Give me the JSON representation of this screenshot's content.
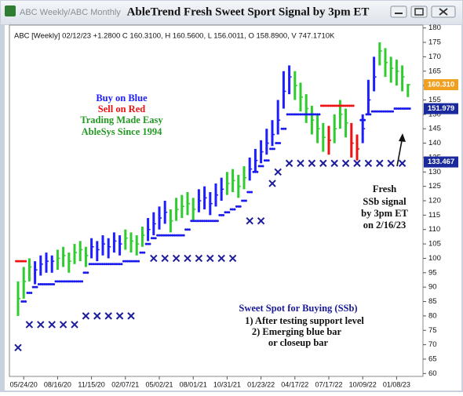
{
  "window": {
    "tab_title": "ABC Weekly/ABC Monthly"
  },
  "chart_data": {
    "type": "ohlc",
    "title": "AbleTrend Fresh Sweet Sport Signal by 3pm ET",
    "subtitle": "ABC [Weekly] 02/12/23 +1.2800 C 160.3100, H 160.5600, L 156.0011, O 158.8900, V 747.1710K",
    "categories": [
      null,
      "05/24/20",
      null,
      null,
      null,
      null,
      null,
      "08/16/20",
      null,
      null,
      null,
      null,
      null,
      "11/15/20",
      null,
      null,
      null,
      null,
      null,
      "02/07/21",
      null,
      null,
      null,
      null,
      null,
      "05/02/21",
      null,
      null,
      null,
      null,
      null,
      "08/01/21",
      null,
      null,
      null,
      null,
      null,
      "10/31/21",
      null,
      null,
      null,
      null,
      null,
      "01/23/22",
      null,
      null,
      null,
      null,
      null,
      "04/17/22",
      null,
      null,
      null,
      null,
      null,
      "07/17/22",
      null,
      null,
      null,
      null,
      null,
      "10/09/22",
      null,
      null,
      null,
      null,
      null,
      "01/08/23",
      null,
      null
    ],
    "high": [
      92,
      97,
      100,
      99,
      101,
      102,
      101,
      103,
      104,
      102,
      105,
      106,
      104,
      107,
      106,
      108,
      107,
      109,
      108,
      110,
      109,
      108,
      111,
      114,
      116,
      118,
      120,
      117,
      121,
      122,
      123,
      121,
      124,
      125,
      123,
      126,
      128,
      130,
      131,
      129,
      132,
      135,
      138,
      141,
      145,
      148,
      155,
      165,
      167,
      165,
      161,
      157,
      153,
      150,
      147,
      146,
      150,
      155,
      152,
      147,
      143,
      150,
      162,
      170,
      175,
      173,
      170,
      169,
      167,
      160.56
    ],
    "low": [
      80,
      86,
      92,
      91,
      94,
      95,
      95,
      96,
      97,
      95,
      98,
      99,
      97,
      100,
      99,
      101,
      100,
      102,
      101,
      103,
      102,
      101,
      104,
      106,
      108,
      110,
      112,
      109,
      113,
      114,
      115,
      113,
      116,
      117,
      115,
      118,
      120,
      122,
      123,
      121,
      124,
      127,
      130,
      133,
      136,
      139,
      143,
      152,
      157,
      155,
      151,
      147,
      143,
      140,
      137,
      136,
      140,
      145,
      142,
      135,
      134,
      140,
      150,
      158,
      167,
      163,
      161,
      160,
      158,
      156.0011
    ],
    "close": [
      86,
      92,
      97,
      96,
      98,
      99,
      99,
      100,
      101,
      99,
      102,
      103,
      101,
      104,
      103,
      105,
      104,
      106,
      105,
      107,
      106,
      105,
      108,
      110,
      112,
      114,
      116,
      113,
      117,
      118,
      119,
      117,
      120,
      121,
      119,
      122,
      124,
      126,
      127,
      125,
      128,
      131,
      134,
      137,
      140,
      143,
      148,
      158,
      163,
      160,
      156,
      152,
      148,
      145,
      142,
      141,
      145,
      150,
      147,
      140,
      138,
      145,
      155,
      163,
      172,
      168,
      166,
      165,
      163,
      160.31
    ],
    "bar_colors": [
      "#2ecc2e",
      "#2ecc2e",
      "#2ecc2e",
      "#1e1eff",
      "#1e1eff",
      "#1e1eff",
      "#1e1eff",
      "#2ecc2e",
      "#2ecc2e",
      "#2ecc2e",
      "#2ecc2e",
      "#2ecc2e",
      "#2ecc2e",
      "#1e1eff",
      "#1e1eff",
      "#1e1eff",
      "#1e1eff",
      "#1e1eff",
      "#1e1eff",
      "#2ecc2e",
      "#2ecc2e",
      "#2ecc2e",
      "#2ecc2e",
      "#1e1eff",
      "#1e1eff",
      "#1e1eff",
      "#1e1eff",
      "#2ecc2e",
      "#2ecc2e",
      "#2ecc2e",
      "#2ecc2e",
      "#2ecc2e",
      "#1e1eff",
      "#1e1eff",
      "#1e1eff",
      "#1e1eff",
      "#1e1eff",
      "#2ecc2e",
      "#2ecc2e",
      "#2ecc2e",
      "#2ecc2e",
      "#1e1eff",
      "#1e1eff",
      "#1e1eff",
      "#1e1eff",
      "#1e1eff",
      "#1e1eff",
      "#1e1eff",
      "#1e1eff",
      "#2ecc2e",
      "#2ecc2e",
      "#2ecc2e",
      "#2ecc2e",
      "#2ecc2e",
      "#2ecc2e",
      "#ee1111",
      "#2ecc2e",
      "#2ecc2e",
      "#2ecc2e",
      "#ee1111",
      "#ee1111",
      "#1e1eff",
      "#1e1eff",
      "#1e1eff",
      "#2ecc2e",
      "#2ecc2e",
      "#2ecc2e",
      "#2ecc2e",
      "#2ecc2e",
      "#2ecc2e"
    ],
    "support": [
      null,
      85,
      88,
      90,
      91,
      91,
      91,
      92,
      92,
      92,
      92,
      92,
      95,
      98,
      98,
      98,
      98,
      98,
      98,
      99,
      99,
      99,
      102,
      105,
      107,
      108,
      108,
      108,
      108,
      108,
      110,
      113,
      113,
      113,
      113,
      113,
      115,
      116,
      117,
      118,
      120,
      123,
      130,
      132,
      134,
      138,
      140,
      145,
      150,
      150,
      150,
      150,
      150,
      150,
      null,
      null,
      null,
      null,
      null,
      null,
      null,
      148,
      150,
      151,
      151,
      151,
      151,
      152,
      152,
      152
    ],
    "support_color": "#1a1aee",
    "resistance": [
      99,
      99,
      null,
      null,
      null,
      null,
      null,
      null,
      null,
      null,
      null,
      null,
      null,
      null,
      null,
      null,
      null,
      null,
      null,
      null,
      null,
      null,
      null,
      null,
      null,
      null,
      null,
      null,
      null,
      null,
      null,
      null,
      null,
      null,
      null,
      null,
      null,
      null,
      null,
      null,
      null,
      null,
      null,
      null,
      null,
      null,
      null,
      null,
      null,
      null,
      null,
      null,
      null,
      null,
      153,
      153,
      153,
      153,
      153,
      153,
      null,
      null,
      null,
      null,
      null,
      null,
      null,
      null,
      null,
      null
    ],
    "resistance_color": "#ee1111",
    "markers": [
      69,
      null,
      77,
      null,
      77,
      null,
      77,
      null,
      77,
      null,
      77,
      null,
      80,
      null,
      80,
      null,
      80,
      null,
      80,
      null,
      80,
      null,
      null,
      null,
      100,
      null,
      100,
      null,
      100,
      null,
      100,
      null,
      100,
      null,
      100,
      null,
      100,
      null,
      100,
      null,
      null,
      113,
      null,
      113,
      null,
      126,
      130,
      null,
      133,
      null,
      133,
      null,
      133,
      null,
      133,
      null,
      133,
      null,
      133,
      null,
      133,
      null,
      133,
      null,
      133,
      null,
      133,
      null,
      133,
      null
    ],
    "marker_color": "#1c1c9c",
    "ylim": [
      59,
      181
    ],
    "yticks": [
      60,
      65,
      70,
      75,
      80,
      85,
      90,
      95,
      100,
      105,
      110,
      115,
      120,
      125,
      130,
      135,
      140,
      145,
      150,
      155,
      160,
      165,
      170,
      175,
      180
    ],
    "price_tags": [
      {
        "value": 160.31,
        "label": "160.310",
        "color": "#f0a020"
      },
      {
        "value": 151.979,
        "label": "151.979",
        "color": "#1a2a9c"
      },
      {
        "value": 133.467,
        "label": "133.467",
        "color": "#1a2a9c"
      }
    ],
    "annotations": [
      {
        "text": "Buy on Blue",
        "color": "#1e1eff"
      },
      {
        "text": "Sell on Red",
        "color": "#ee1111"
      },
      {
        "text": "Trading Made Easy",
        "color": "#229922"
      },
      {
        "text": "AbleSys Since 1994",
        "color": "#229922"
      },
      {
        "text": "Fresh",
        "color": "#111111"
      },
      {
        "text": "SSb signal",
        "color": "#111111"
      },
      {
        "text": "by 3pm ET",
        "color": "#111111"
      },
      {
        "text": "on 2/16/23",
        "color": "#111111"
      },
      {
        "text": "Sweet Spot for Buying (SSb)",
        "color": "#1a1a99"
      },
      {
        "text": "1) After testing support level",
        "color": "#111111"
      },
      {
        "text": "2) Emerging blue bar",
        "color": "#111111"
      },
      {
        "text": "or closeup bar",
        "color": "#111111"
      }
    ]
  }
}
